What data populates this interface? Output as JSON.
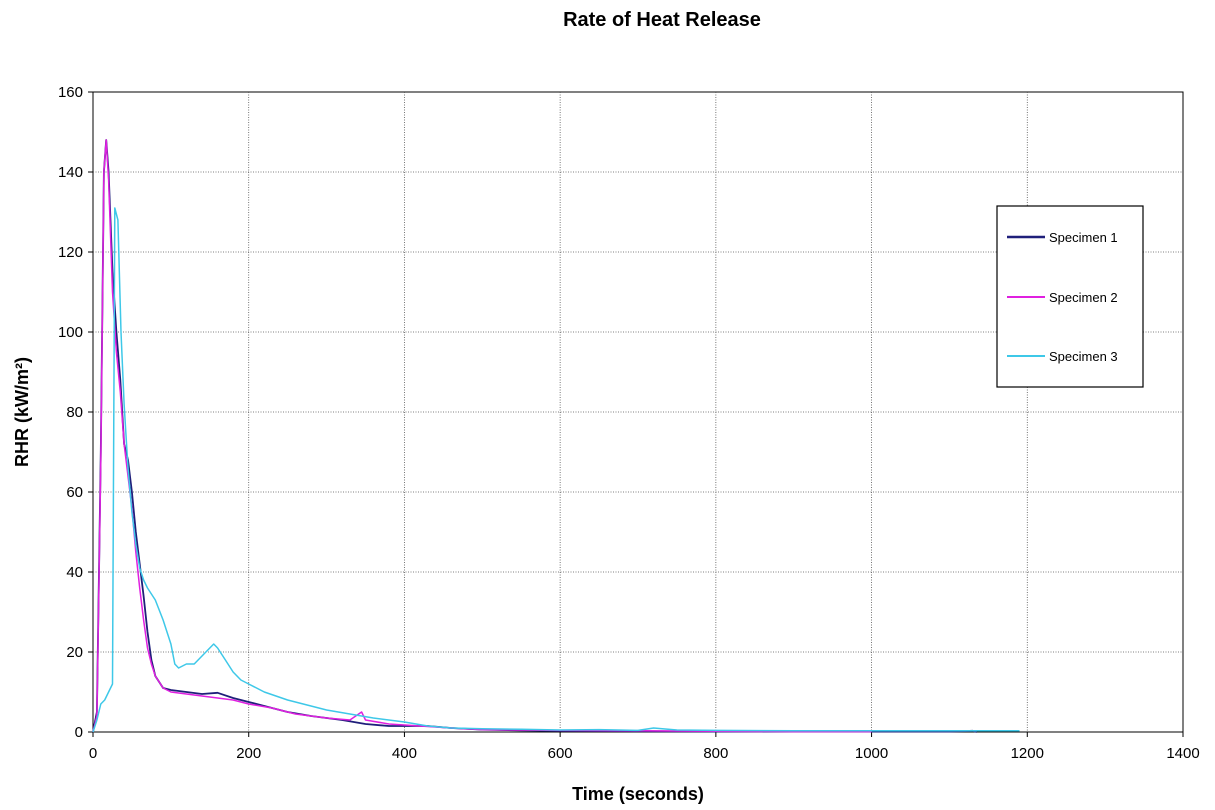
{
  "chart_data": {
    "type": "line",
    "title": "Rate of Heat Release",
    "xlabel": "Time (seconds)",
    "ylabel": "RHR (kW/m²)",
    "xlim": [
      0,
      1400
    ],
    "ylim": [
      0,
      160
    ],
    "x_ticks": [
      0,
      200,
      400,
      600,
      800,
      1000,
      1200,
      1400
    ],
    "y_ticks": [
      0,
      20,
      40,
      60,
      80,
      100,
      120,
      140,
      160
    ],
    "grid": true,
    "legend_position": "right",
    "series": [
      {
        "name": "Specimen 1",
        "color": "#1f1f7a",
        "points": [
          [
            0,
            0
          ],
          [
            5,
            5
          ],
          [
            10,
            70
          ],
          [
            14,
            140
          ],
          [
            17,
            148
          ],
          [
            20,
            140
          ],
          [
            25,
            115
          ],
          [
            30,
            100
          ],
          [
            35,
            88
          ],
          [
            40,
            72
          ],
          [
            45,
            68
          ],
          [
            50,
            60
          ],
          [
            55,
            50
          ],
          [
            60,
            42
          ],
          [
            65,
            34
          ],
          [
            70,
            25
          ],
          [
            75,
            18
          ],
          [
            80,
            14
          ],
          [
            90,
            11
          ],
          [
            100,
            10.5
          ],
          [
            120,
            10
          ],
          [
            140,
            9.5
          ],
          [
            160,
            9.8
          ],
          [
            180,
            8.5
          ],
          [
            200,
            7.5
          ],
          [
            220,
            6.5
          ],
          [
            250,
            5
          ],
          [
            280,
            4
          ],
          [
            320,
            3
          ],
          [
            350,
            2
          ],
          [
            380,
            1.5
          ],
          [
            400,
            1.5
          ],
          [
            430,
            1.5
          ],
          [
            460,
            1
          ],
          [
            500,
            0.6
          ],
          [
            550,
            0.4
          ],
          [
            600,
            0.3
          ],
          [
            700,
            0.2
          ],
          [
            800,
            0.1
          ],
          [
            900,
            0.1
          ],
          [
            1000,
            0.1
          ],
          [
            1100,
            0.1
          ],
          [
            1130,
            0.3
          ],
          [
            1135,
            0
          ]
        ]
      },
      {
        "name": "Specimen 2",
        "color": "#e020e0",
        "points": [
          [
            0,
            0
          ],
          [
            5,
            4
          ],
          [
            10,
            68
          ],
          [
            14,
            140
          ],
          [
            17,
            148
          ],
          [
            20,
            138
          ],
          [
            25,
            110
          ],
          [
            30,
            95
          ],
          [
            35,
            85
          ],
          [
            40,
            72
          ],
          [
            45,
            64
          ],
          [
            50,
            56
          ],
          [
            55,
            45
          ],
          [
            60,
            36
          ],
          [
            65,
            28
          ],
          [
            70,
            21
          ],
          [
            75,
            17
          ],
          [
            80,
            14
          ],
          [
            90,
            11
          ],
          [
            100,
            10
          ],
          [
            120,
            9.5
          ],
          [
            140,
            9
          ],
          [
            160,
            8.5
          ],
          [
            180,
            8
          ],
          [
            200,
            7
          ],
          [
            230,
            6
          ],
          [
            260,
            4.5
          ],
          [
            300,
            3.5
          ],
          [
            330,
            3
          ],
          [
            345,
            5
          ],
          [
            350,
            3
          ],
          [
            380,
            2
          ],
          [
            420,
            1.5
          ],
          [
            460,
            1
          ],
          [
            500,
            0.6
          ],
          [
            600,
            0.4
          ],
          [
            700,
            0.3
          ],
          [
            800,
            0.2
          ],
          [
            900,
            0.1
          ],
          [
            1000,
            0.1
          ]
        ]
      },
      {
        "name": "Specimen 3",
        "color": "#3ec8e8",
        "points": [
          [
            0,
            0
          ],
          [
            5,
            3
          ],
          [
            10,
            7
          ],
          [
            15,
            8
          ],
          [
            20,
            10
          ],
          [
            25,
            12
          ],
          [
            28,
            131
          ],
          [
            32,
            128
          ],
          [
            36,
            100
          ],
          [
            40,
            82
          ],
          [
            45,
            66
          ],
          [
            50,
            55
          ],
          [
            55,
            47
          ],
          [
            60,
            41
          ],
          [
            65,
            38
          ],
          [
            70,
            36
          ],
          [
            80,
            33
          ],
          [
            90,
            28
          ],
          [
            100,
            22
          ],
          [
            105,
            17
          ],
          [
            110,
            16
          ],
          [
            120,
            17
          ],
          [
            130,
            17
          ],
          [
            140,
            19
          ],
          [
            150,
            21
          ],
          [
            155,
            22
          ],
          [
            160,
            21
          ],
          [
            170,
            18
          ],
          [
            180,
            15
          ],
          [
            190,
            13
          ],
          [
            200,
            12
          ],
          [
            220,
            10
          ],
          [
            250,
            8
          ],
          [
            280,
            6.5
          ],
          [
            300,
            5.5
          ],
          [
            330,
            4.5
          ],
          [
            360,
            3.5
          ],
          [
            400,
            2.5
          ],
          [
            430,
            1.5
          ],
          [
            460,
            1
          ],
          [
            500,
            0.8
          ],
          [
            550,
            0.7
          ],
          [
            600,
            0.5
          ],
          [
            650,
            0.6
          ],
          [
            700,
            0.4
          ],
          [
            720,
            1
          ],
          [
            750,
            0.5
          ],
          [
            800,
            0.4
          ],
          [
            900,
            0.3
          ],
          [
            1000,
            0.3
          ],
          [
            1100,
            0.3
          ],
          [
            1190,
            0.3
          ]
        ]
      }
    ]
  }
}
